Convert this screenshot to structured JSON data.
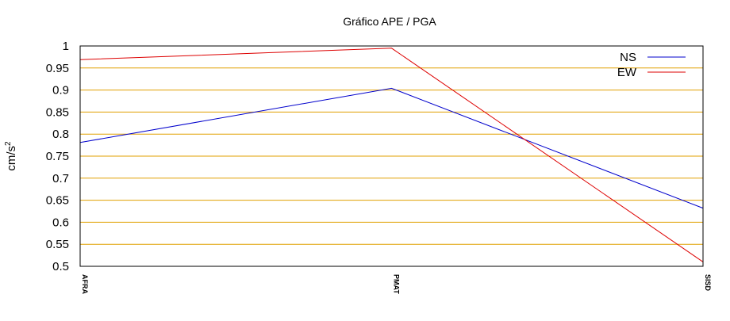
{
  "chart_data": {
    "type": "line",
    "title": "Gráfico  APE / PGA",
    "xlabel": "",
    "ylabel": "cm/s",
    "ylabel_superscript": "2",
    "categories": [
      "AFRA",
      "PMAT",
      "SISD"
    ],
    "ylim": [
      0.5,
      1.0
    ],
    "yticks": [
      0.5,
      0.55,
      0.6,
      0.65,
      0.7,
      0.75,
      0.8,
      0.85,
      0.9,
      0.95,
      1.0
    ],
    "ytick_labels": [
      "0.5",
      "0.55",
      "0.6",
      "0.65",
      "0.7",
      "0.75",
      "0.8",
      "0.85",
      "0.9",
      "0.95",
      "1"
    ],
    "grid": true,
    "grid_color": "#e0a000",
    "legend_position": "top-right",
    "series": [
      {
        "name": "NS",
        "values": [
          0.781,
          0.904,
          0.632
        ],
        "color": "#0000cc"
      },
      {
        "name": "EW",
        "values": [
          0.969,
          0.995,
          0.51
        ],
        "color": "#dd0000"
      }
    ]
  }
}
